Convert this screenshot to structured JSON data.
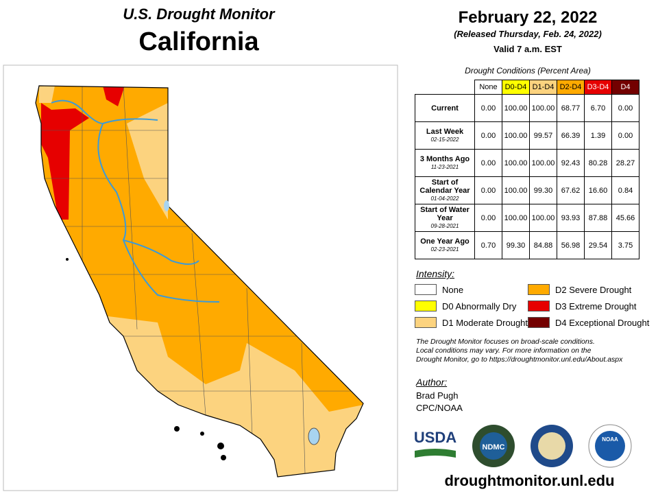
{
  "header": {
    "title": "U.S. Drought Monitor",
    "state": "California",
    "date": "February 22, 2022",
    "released": "(Released Thursday, Feb. 24, 2022)",
    "valid": "Valid 7 a.m. EST"
  },
  "table": {
    "caption": "Drought Conditions (Percent Area)",
    "columns": [
      "None",
      "D0-D4",
      "D1-D4",
      "D2-D4",
      "D3-D4",
      "D4"
    ],
    "rows": [
      {
        "label": "Current",
        "values": [
          "0.00",
          "100.00",
          "100.00",
          "68.77",
          "6.70",
          "0.00"
        ]
      },
      {
        "label": "Last Week",
        "date": "02-15-2022",
        "values": [
          "0.00",
          "100.00",
          "99.57",
          "66.39",
          "1.39",
          "0.00"
        ]
      },
      {
        "label": "3 Months Ago",
        "date": "11-23-2021",
        "values": [
          "0.00",
          "100.00",
          "100.00",
          "92.43",
          "80.28",
          "28.27"
        ]
      },
      {
        "label": "Start of Calendar Year",
        "date": "01-04-2022",
        "values": [
          "0.00",
          "100.00",
          "99.30",
          "67.62",
          "16.60",
          "0.84"
        ]
      },
      {
        "label": "Start of Water Year",
        "date": "09-28-2021",
        "values": [
          "0.00",
          "100.00",
          "100.00",
          "93.93",
          "87.88",
          "45.66"
        ]
      },
      {
        "label": "One Year Ago",
        "date": "02-23-2021",
        "values": [
          "0.70",
          "99.30",
          "84.88",
          "56.98",
          "29.54",
          "3.75"
        ]
      }
    ]
  },
  "legend": {
    "title": "Intensity:",
    "items": [
      {
        "label": "None",
        "color": "#ffffff"
      },
      {
        "label": "D0 Abnormally Dry",
        "color": "#ffff00"
      },
      {
        "label": "D1 Moderate Drought",
        "color": "#fcd37f"
      },
      {
        "label": "D2 Severe Drought",
        "color": "#ffaa00"
      },
      {
        "label": "D3 Extreme Drought",
        "color": "#e60000"
      },
      {
        "label": "D4 Exceptional Drought",
        "color": "#730000"
      }
    ]
  },
  "note": [
    "The Drought Monitor focuses on broad-scale conditions.",
    "Local conditions may vary. For more information on the",
    "Drought Monitor, go to https://droughtmonitor.unl.edu/About.aspx"
  ],
  "author": {
    "title": "Author:",
    "name": "Brad Pugh",
    "org": "CPC/NOAA"
  },
  "logos": [
    "USDA",
    "NDMC",
    "NOAA"
  ],
  "url": "droughtmonitor.unl.edu"
}
